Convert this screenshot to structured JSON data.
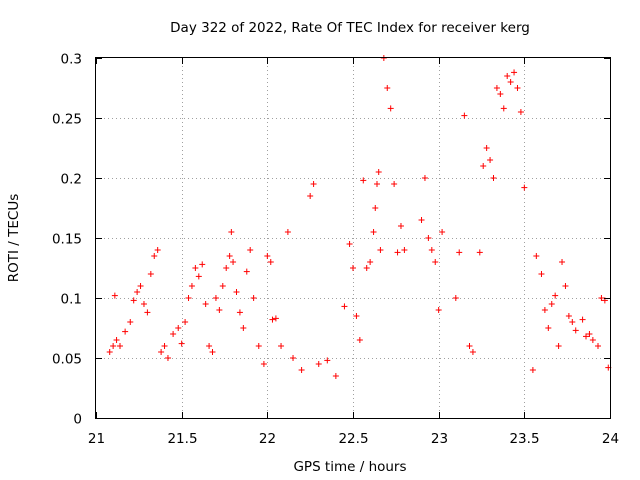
{
  "chart_data": {
    "type": "scatter",
    "title": "Day 322 of 2022, Rate Of TEC Index for receiver kerg",
    "xlabel": "GPS time / hours",
    "ylabel": "ROTI / TECUs",
    "xlim": [
      21,
      24
    ],
    "ylim": [
      0,
      0.3
    ],
    "xticks": [
      21,
      21.5,
      22,
      22.5,
      23,
      23.5,
      24
    ],
    "xtick_labels": [
      "21",
      "21.5",
      "22",
      "22.5",
      "23",
      "23.5",
      "24"
    ],
    "yticks": [
      0,
      0.05,
      0.1,
      0.15,
      0.2,
      0.25,
      0.3
    ],
    "ytick_labels": [
      "0",
      "0.05",
      "0.1",
      "0.15",
      "0.2",
      "0.25",
      "0.3"
    ],
    "grid": true,
    "marker": "+",
    "color": "#ff0000",
    "series": [
      {
        "name": "ROTI",
        "points": [
          [
            21.08,
            0.055
          ],
          [
            21.1,
            0.06
          ],
          [
            21.11,
            0.102
          ],
          [
            21.12,
            0.065
          ],
          [
            21.14,
            0.06
          ],
          [
            21.17,
            0.072
          ],
          [
            21.2,
            0.08
          ],
          [
            21.22,
            0.098
          ],
          [
            21.24,
            0.105
          ],
          [
            21.26,
            0.11
          ],
          [
            21.28,
            0.095
          ],
          [
            21.3,
            0.088
          ],
          [
            21.32,
            0.12
          ],
          [
            21.34,
            0.135
          ],
          [
            21.36,
            0.14
          ],
          [
            21.38,
            0.055
          ],
          [
            21.4,
            0.06
          ],
          [
            21.42,
            0.05
          ],
          [
            21.45,
            0.07
          ],
          [
            21.48,
            0.075
          ],
          [
            21.5,
            0.062
          ],
          [
            21.52,
            0.08
          ],
          [
            21.54,
            0.1
          ],
          [
            21.56,
            0.11
          ],
          [
            21.58,
            0.125
          ],
          [
            21.6,
            0.118
          ],
          [
            21.62,
            0.128
          ],
          [
            21.64,
            0.095
          ],
          [
            21.66,
            0.06
          ],
          [
            21.68,
            0.055
          ],
          [
            21.7,
            0.1
          ],
          [
            21.72,
            0.09
          ],
          [
            21.74,
            0.11
          ],
          [
            21.76,
            0.125
          ],
          [
            21.78,
            0.135
          ],
          [
            21.79,
            0.155
          ],
          [
            21.8,
            0.13
          ],
          [
            21.82,
            0.105
          ],
          [
            21.84,
            0.088
          ],
          [
            21.86,
            0.075
          ],
          [
            21.88,
            0.122
          ],
          [
            21.9,
            0.14
          ],
          [
            21.92,
            0.1
          ],
          [
            21.95,
            0.06
          ],
          [
            21.98,
            0.045
          ],
          [
            22.0,
            0.135
          ],
          [
            22.02,
            0.13
          ],
          [
            22.03,
            0.082
          ],
          [
            22.05,
            0.083
          ],
          [
            22.08,
            0.06
          ],
          [
            22.12,
            0.155
          ],
          [
            22.15,
            0.05
          ],
          [
            22.2,
            0.04
          ],
          [
            22.25,
            0.185
          ],
          [
            22.27,
            0.195
          ],
          [
            22.3,
            0.045
          ],
          [
            22.35,
            0.048
          ],
          [
            22.4,
            0.035
          ],
          [
            22.45,
            0.093
          ],
          [
            22.48,
            0.145
          ],
          [
            22.5,
            0.125
          ],
          [
            22.52,
            0.085
          ],
          [
            22.54,
            0.065
          ],
          [
            22.56,
            0.198
          ],
          [
            22.58,
            0.125
          ],
          [
            22.6,
            0.13
          ],
          [
            22.62,
            0.155
          ],
          [
            22.63,
            0.175
          ],
          [
            22.64,
            0.195
          ],
          [
            22.65,
            0.205
          ],
          [
            22.66,
            0.14
          ],
          [
            22.68,
            0.3
          ],
          [
            22.7,
            0.275
          ],
          [
            22.72,
            0.258
          ],
          [
            22.74,
            0.195
          ],
          [
            22.76,
            0.138
          ],
          [
            22.78,
            0.16
          ],
          [
            22.8,
            0.14
          ],
          [
            22.9,
            0.165
          ],
          [
            22.92,
            0.2
          ],
          [
            22.94,
            0.15
          ],
          [
            22.96,
            0.14
          ],
          [
            22.98,
            0.13
          ],
          [
            23.0,
            0.09
          ],
          [
            23.02,
            0.155
          ],
          [
            23.1,
            0.1
          ],
          [
            23.12,
            0.138
          ],
          [
            23.15,
            0.252
          ],
          [
            23.18,
            0.06
          ],
          [
            23.2,
            0.055
          ],
          [
            23.24,
            0.138
          ],
          [
            23.26,
            0.21
          ],
          [
            23.28,
            0.225
          ],
          [
            23.3,
            0.215
          ],
          [
            23.32,
            0.2
          ],
          [
            23.34,
            0.275
          ],
          [
            23.36,
            0.27
          ],
          [
            23.38,
            0.258
          ],
          [
            23.4,
            0.285
          ],
          [
            23.42,
            0.28
          ],
          [
            23.44,
            0.288
          ],
          [
            23.46,
            0.275
          ],
          [
            23.48,
            0.255
          ],
          [
            23.5,
            0.192
          ],
          [
            23.55,
            0.04
          ],
          [
            23.57,
            0.135
          ],
          [
            23.6,
            0.12
          ],
          [
            23.62,
            0.09
          ],
          [
            23.64,
            0.075
          ],
          [
            23.66,
            0.095
          ],
          [
            23.68,
            0.102
          ],
          [
            23.7,
            0.06
          ],
          [
            23.72,
            0.13
          ],
          [
            23.74,
            0.11
          ],
          [
            23.76,
            0.085
          ],
          [
            23.78,
            0.08
          ],
          [
            23.8,
            0.073
          ],
          [
            23.84,
            0.082
          ],
          [
            23.86,
            0.068
          ],
          [
            23.88,
            0.07
          ],
          [
            23.9,
            0.065
          ],
          [
            23.93,
            0.06
          ],
          [
            23.95,
            0.1
          ],
          [
            23.97,
            0.098
          ],
          [
            23.99,
            0.042
          ]
        ]
      }
    ]
  }
}
